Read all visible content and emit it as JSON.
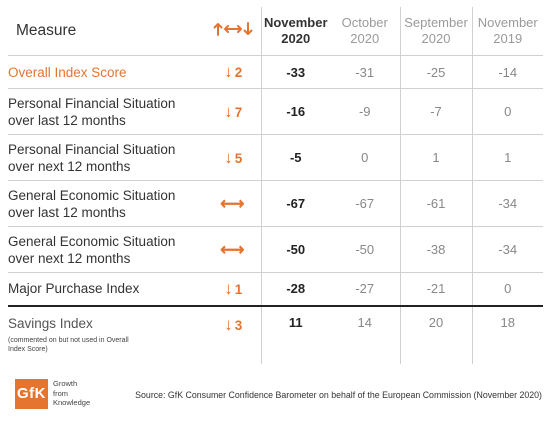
{
  "header": {
    "measure": "Measure",
    "change_icon": "↑⟷↓",
    "columns": [
      {
        "line1": "November",
        "line2": "2020"
      },
      {
        "line1": "October",
        "line2": "2020"
      },
      {
        "line1": "September",
        "line2": "2020"
      },
      {
        "line1": "November",
        "line2": "2019"
      }
    ]
  },
  "rows": [
    {
      "name1": "Overall Index Score",
      "name2": "",
      "arrow": "↓",
      "change": "2",
      "values": [
        "-33",
        "-31",
        "-25",
        "-14"
      ]
    },
    {
      "name1": "Personal Financial Situation",
      "name2": "over last 12 months",
      "arrow": "↓",
      "change": "7",
      "values": [
        "-16",
        "-9",
        "-7",
        "0"
      ]
    },
    {
      "name1": "Personal Financial Situation",
      "name2": "over next 12 months",
      "arrow": "↓",
      "change": "5",
      "values": [
        "-5",
        "0",
        "1",
        "1"
      ]
    },
    {
      "name1": "General Economic Situation",
      "name2": "over last 12 months",
      "arrow": "⟷",
      "change": "",
      "values": [
        "-67",
        "-67",
        "-61",
        "-34"
      ]
    },
    {
      "name1": "General Economic Situation",
      "name2": "over next 12 months",
      "arrow": "⟷",
      "change": "",
      "values": [
        "-50",
        "-50",
        "-38",
        "-34"
      ]
    },
    {
      "name1": "Major Purchase Index",
      "name2": "",
      "arrow": "↓",
      "change": "1",
      "values": [
        "-28",
        "-27",
        "-21",
        "0"
      ]
    },
    {
      "name1": "Savings Index",
      "name2": "",
      "note1": "(commented on but not used in Overall",
      "note2": "Index Score)",
      "arrow": "↓",
      "change": "3",
      "values": [
        "11",
        "14",
        "20",
        "18"
      ]
    }
  ],
  "footer": {
    "logo_text": "GfK",
    "tagline": [
      "Growth",
      "from",
      "Knowledge"
    ],
    "source": "Source: GfK Consumer Confidence Barometer on behalf of the European Commission (November 2020)"
  },
  "colors": {
    "accent": "#e5742f",
    "text": "#333333",
    "muted": "#888888",
    "rule": "#d0d0d0"
  }
}
